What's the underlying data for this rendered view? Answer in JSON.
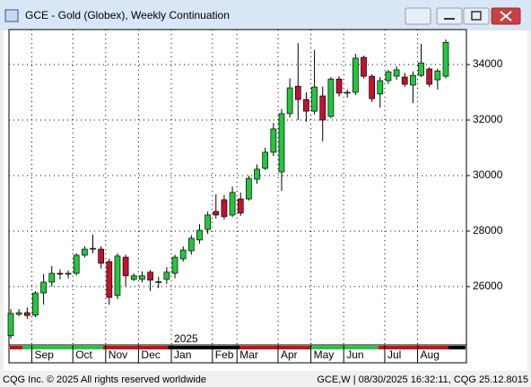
{
  "window_title": "GCE - Gold (Globex), Weekly Continuation",
  "status_left": "CQG Inc. © 2025 All rights reserved worldwide",
  "status_right": "GCE,W | 08/30/2025 16:32:11, CQG 25.12.8015",
  "chart_data": {
    "type": "candlestick",
    "categories": [
      null,
      null,
      null,
      "Sep",
      null,
      null,
      null,
      null,
      "Oct",
      null,
      null,
      null,
      "Nov",
      null,
      null,
      null,
      "Dec",
      null,
      null,
      null,
      "Jan",
      null,
      null,
      null,
      null,
      "Feb",
      null,
      null,
      "Mar",
      null,
      null,
      null,
      null,
      "Apr",
      null,
      null,
      null,
      "May",
      null,
      null,
      null,
      "Jun",
      null,
      null,
      null,
      null,
      "Jul",
      null,
      null,
      null,
      "Aug",
      null,
      null,
      null
    ],
    "year_label": "2025",
    "open": [
      24230,
      25000,
      25060,
      24970,
      25770,
      26160,
      26480,
      26450,
      26480,
      27130,
      27350,
      27350,
      26900,
      25680,
      27060,
      26260,
      26260,
      26520,
      26150,
      26260,
      26480,
      27000,
      27290,
      27680,
      28060,
      28710,
      29130,
      28580,
      29160,
      29160,
      29870,
      30260,
      30840,
      30130,
      32230,
      33220,
      32740,
      32320,
      32870,
      32130,
      33480,
      32970,
      33000,
      34260,
      33580,
      32940,
      33420,
      33580,
      33550,
      33260,
      33610,
      33840,
      33450,
      33580
    ],
    "high": [
      25190,
      25190,
      25250,
      25840,
      26450,
      26740,
      26620,
      26580,
      27200,
      27450,
      27870,
      27450,
      27000,
      27200,
      27150,
      26480,
      26550,
      26600,
      26350,
      26700,
      27150,
      27450,
      27850,
      28250,
      28700,
      29330,
      29300,
      29600,
      29390,
      30000,
      30400,
      31000,
      31900,
      32400,
      33500,
      34770,
      33000,
      34520,
      33200,
      33550,
      33580,
      33100,
      34390,
      34320,
      33650,
      33550,
      33800,
      33940,
      33700,
      33750,
      34740,
      33900,
      33850,
      34900
    ],
    "low": [
      24130,
      24930,
      24840,
      24900,
      25350,
      26000,
      26260,
      26300,
      26400,
      27050,
      27200,
      26650,
      25350,
      25550,
      26000,
      26200,
      26150,
      25840,
      25950,
      26100,
      26300,
      26900,
      27150,
      27550,
      27900,
      28450,
      28420,
      28500,
      28550,
      29100,
      29700,
      30200,
      30700,
      29450,
      32100,
      32000,
      31940,
      32200,
      31230,
      32070,
      32850,
      32800,
      32900,
      33500,
      32650,
      32450,
      33300,
      33450,
      33200,
      32610,
      33550,
      33190,
      33100,
      33500
    ],
    "close": [
      25030,
      25060,
      24960,
      25770,
      26160,
      26480,
      26450,
      26480,
      27130,
      27350,
      27380,
      26840,
      25610,
      27100,
      26390,
      26390,
      26390,
      26230,
      26180,
      26520,
      27060,
      27320,
      27740,
      28030,
      28580,
      28580,
      28520,
      29390,
      28650,
      29900,
      30230,
      30840,
      31680,
      32230,
      33160,
      32740,
      32320,
      33190,
      32000,
      33480,
      32970,
      33000,
      34230,
      33580,
      32770,
      33420,
      33740,
      33810,
      33290,
      33610,
      34060,
      33290,
      33770,
      34800
    ],
    "up_color": "#22c83c",
    "down_color": "#c8102e",
    "ylim": [
      23900,
      35260
    ],
    "yticks": [
      26000,
      28000,
      30000,
      32000,
      34000
    ],
    "grid": true
  }
}
